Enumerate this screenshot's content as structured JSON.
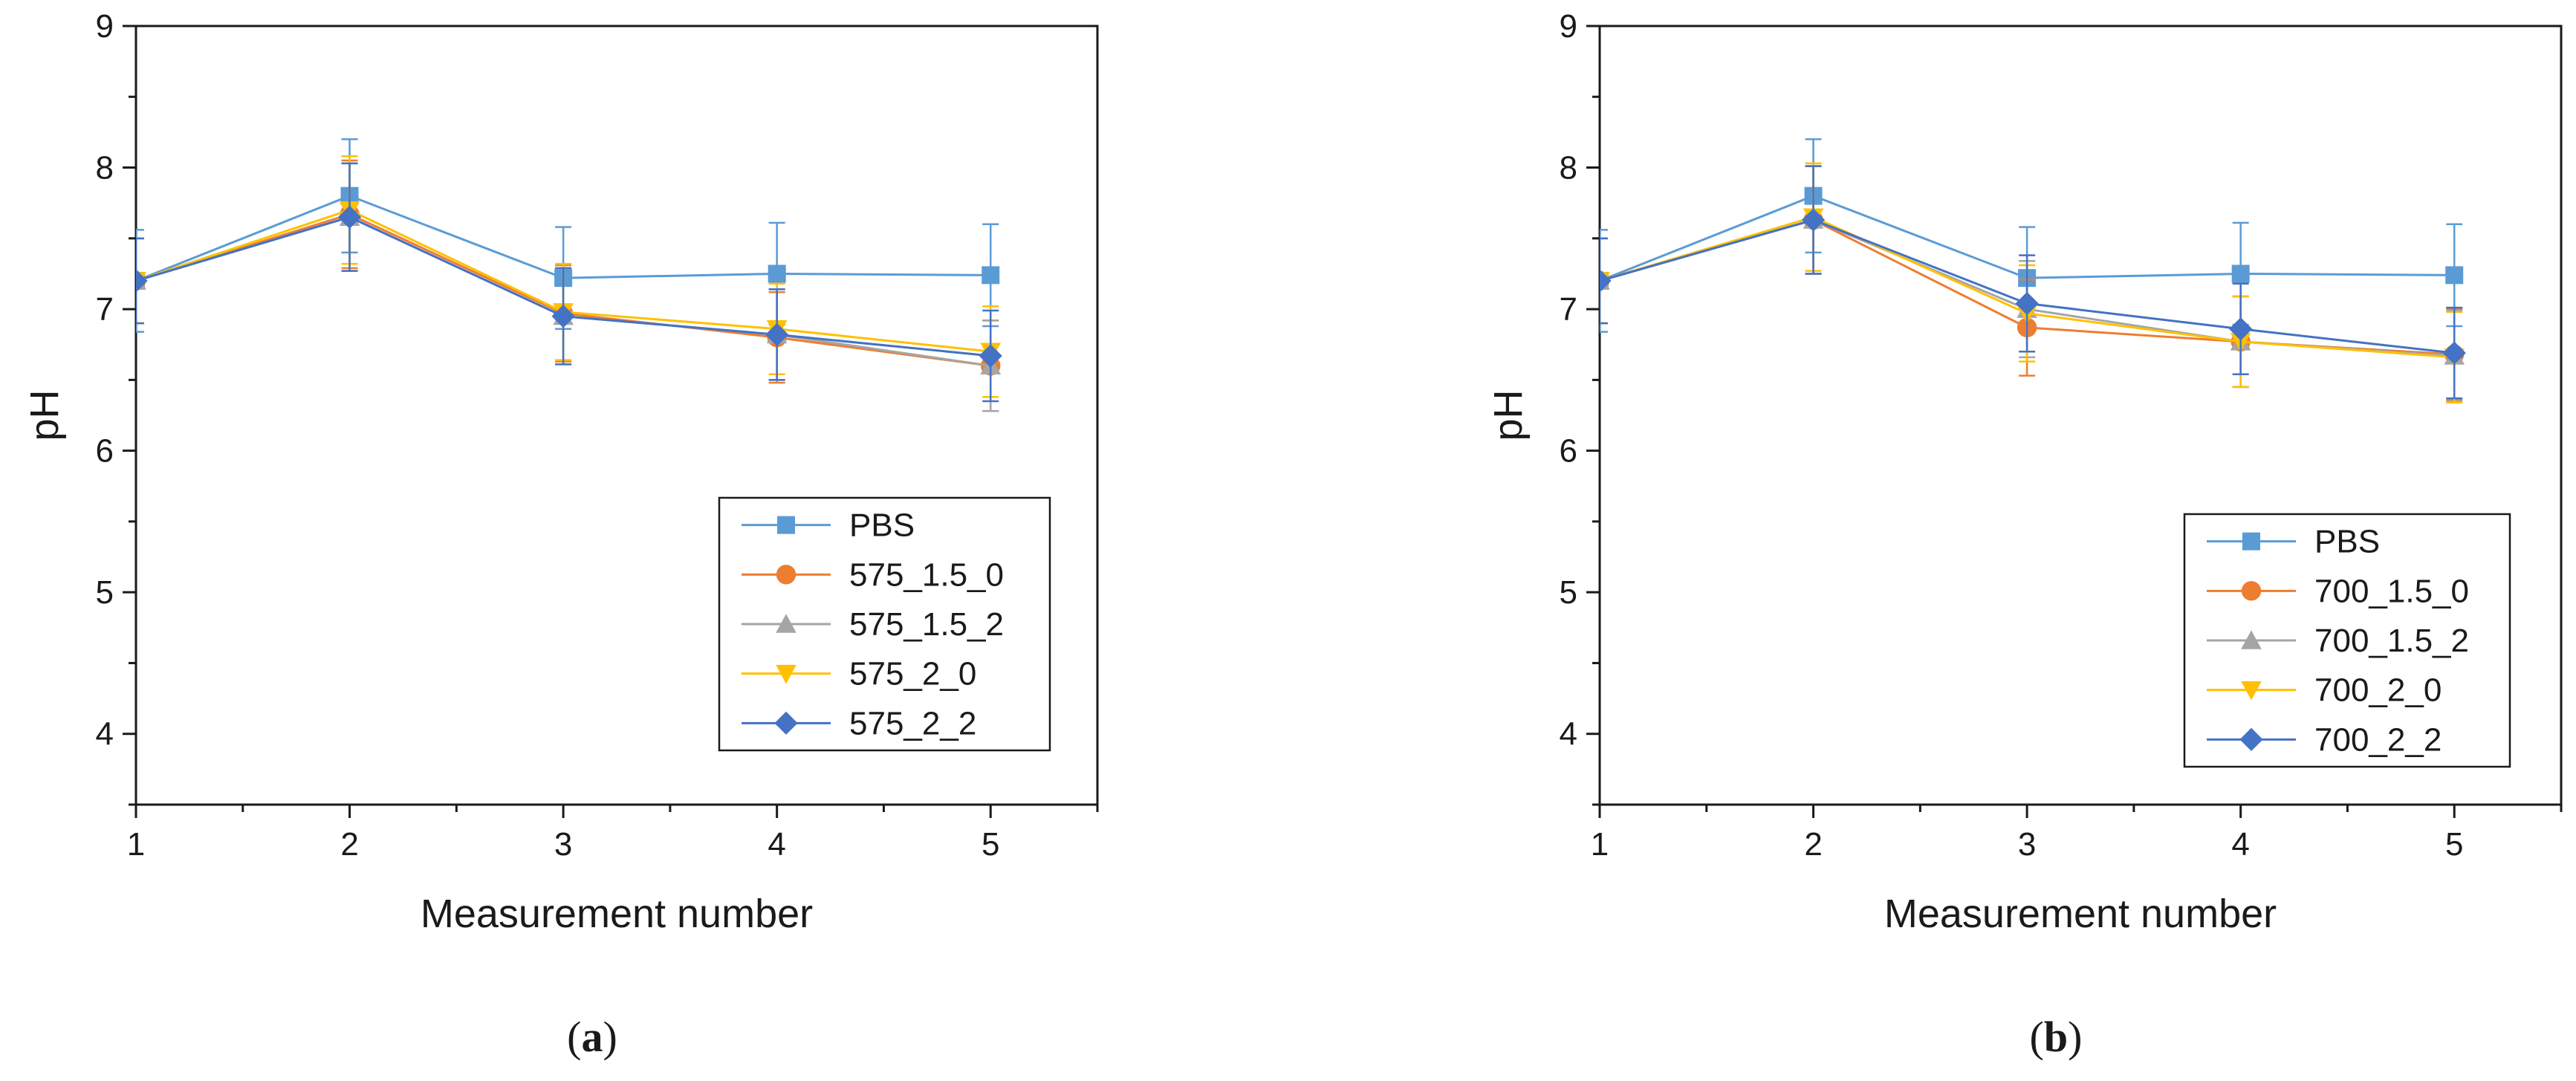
{
  "chart_data": [
    {
      "type": "line",
      "panel_label": "a",
      "xlabel": "Measurement number",
      "ylabel": "pH",
      "xlim": [
        1,
        5.5
      ],
      "ylim": [
        3.5,
        9
      ],
      "xticks": [
        1,
        2,
        3,
        4,
        5
      ],
      "yticks": [
        4,
        5,
        6,
        7,
        8,
        9
      ],
      "x": [
        1,
        2,
        3,
        4,
        5
      ],
      "legend_position": "bottom-right",
      "series": [
        {
          "name": "PBS",
          "color": "#5b9bd5",
          "marker": "square",
          "values": [
            7.2,
            7.8,
            7.22,
            7.25,
            7.24
          ],
          "errors": [
            0.36,
            0.4,
            0.36,
            0.36,
            0.36
          ]
        },
        {
          "name": "575_1.5_0",
          "color": "#ed7d31",
          "marker": "circle",
          "values": [
            7.2,
            7.67,
            6.97,
            6.8,
            6.6
          ],
          "errors": [
            0.3,
            0.38,
            0.34,
            0.32,
            0.32
          ]
        },
        {
          "name": "575_1.5_2",
          "color": "#a5a5a5",
          "marker": "triangle-up",
          "values": [
            7.2,
            7.65,
            6.95,
            6.82,
            6.6
          ],
          "errors": [
            0.3,
            0.38,
            0.34,
            0.32,
            0.32
          ]
        },
        {
          "name": "575_2_0",
          "color": "#ffc000",
          "marker": "triangle-down",
          "values": [
            7.2,
            7.7,
            6.98,
            6.86,
            6.7
          ],
          "errors": [
            0.3,
            0.38,
            0.34,
            0.32,
            0.32
          ]
        },
        {
          "name": "575_2_2",
          "color": "#4472c4",
          "marker": "diamond",
          "values": [
            7.2,
            7.65,
            6.95,
            6.82,
            6.67
          ],
          "errors": [
            0.3,
            0.38,
            0.34,
            0.32,
            0.32
          ]
        }
      ]
    },
    {
      "type": "line",
      "panel_label": "b",
      "xlabel": "Measurement number",
      "ylabel": "pH",
      "xlim": [
        1,
        5.5
      ],
      "ylim": [
        3.5,
        9
      ],
      "xticks": [
        1,
        2,
        3,
        4,
        5
      ],
      "yticks": [
        4,
        5,
        6,
        7,
        8,
        9
      ],
      "x": [
        1,
        2,
        3,
        4,
        5
      ],
      "legend_position": "bottom-right",
      "series": [
        {
          "name": "PBS",
          "color": "#5b9bd5",
          "marker": "square",
          "values": [
            7.2,
            7.8,
            7.22,
            7.25,
            7.24
          ],
          "errors": [
            0.36,
            0.4,
            0.36,
            0.36,
            0.36
          ]
        },
        {
          "name": "700_1.5_0",
          "color": "#ed7d31",
          "marker": "circle",
          "values": [
            7.2,
            7.63,
            6.87,
            6.77,
            6.68
          ],
          "errors": [
            0.3,
            0.38,
            0.34,
            0.32,
            0.32
          ]
        },
        {
          "name": "700_1.5_2",
          "color": "#a5a5a5",
          "marker": "triangle-up",
          "values": [
            7.2,
            7.63,
            7.0,
            6.77,
            6.67
          ],
          "errors": [
            0.3,
            0.38,
            0.34,
            0.32,
            0.32
          ]
        },
        {
          "name": "700_2_0",
          "color": "#ffc000",
          "marker": "triangle-down",
          "values": [
            7.2,
            7.65,
            6.97,
            6.77,
            6.66
          ],
          "errors": [
            0.3,
            0.38,
            0.34,
            0.32,
            0.32
          ]
        },
        {
          "name": "700_2_2",
          "color": "#4472c4",
          "marker": "diamond",
          "values": [
            7.2,
            7.63,
            7.04,
            6.86,
            6.69
          ],
          "errors": [
            0.3,
            0.38,
            0.34,
            0.32,
            0.32
          ]
        }
      ]
    }
  ]
}
